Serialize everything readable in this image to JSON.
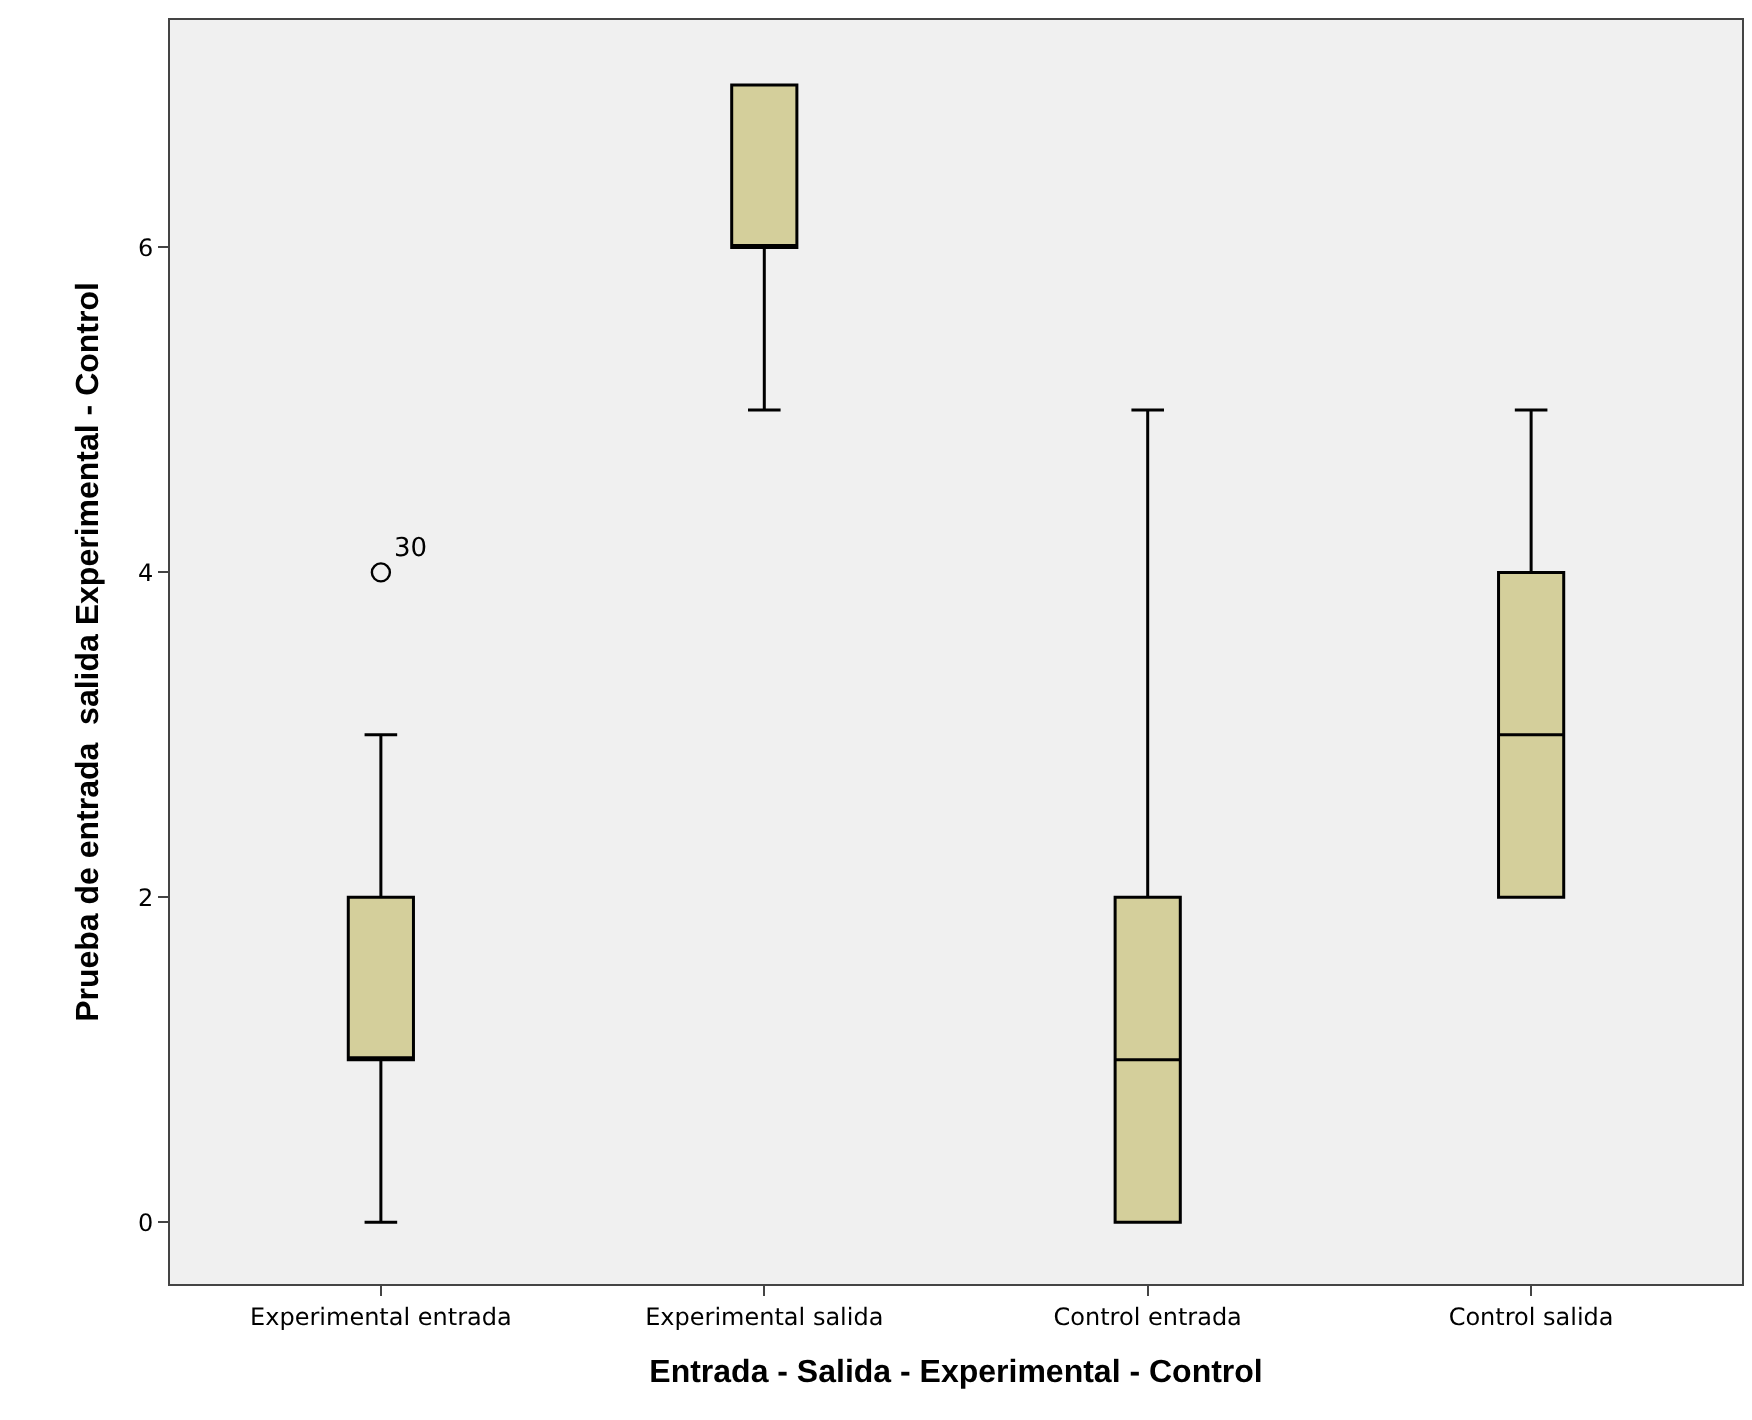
{
  "chart_data": {
    "type": "box",
    "xlabel": "Entrada - Salida - Experimental - Control",
    "ylabel": "Prueba de entrada  salida Experimental - Control",
    "categories": [
      "Experimental entrada",
      "Experimental salida",
      "Control entrada",
      "Control salida"
    ],
    "color": "#d4cf9b",
    "boxes": [
      {
        "low": 0,
        "q1": 1,
        "median": 1,
        "q3": 2,
        "high": 3,
        "outliers": [
          4
        ]
      },
      {
        "low": 5,
        "q1": 6,
        "median": 6,
        "q3": 7,
        "high": 7
      },
      {
        "low": 0,
        "q1": 0,
        "median": 1,
        "q3": 2,
        "high": 5
      },
      {
        "low": 2,
        "q1": 2,
        "median": 3,
        "q3": 4,
        "high": 5
      }
    ],
    "annotations": [
      "30"
    ],
    "ylim": [
      -0.38,
      7.4
    ],
    "yticks": [
      0,
      2,
      4,
      6
    ],
    "grid": false
  }
}
